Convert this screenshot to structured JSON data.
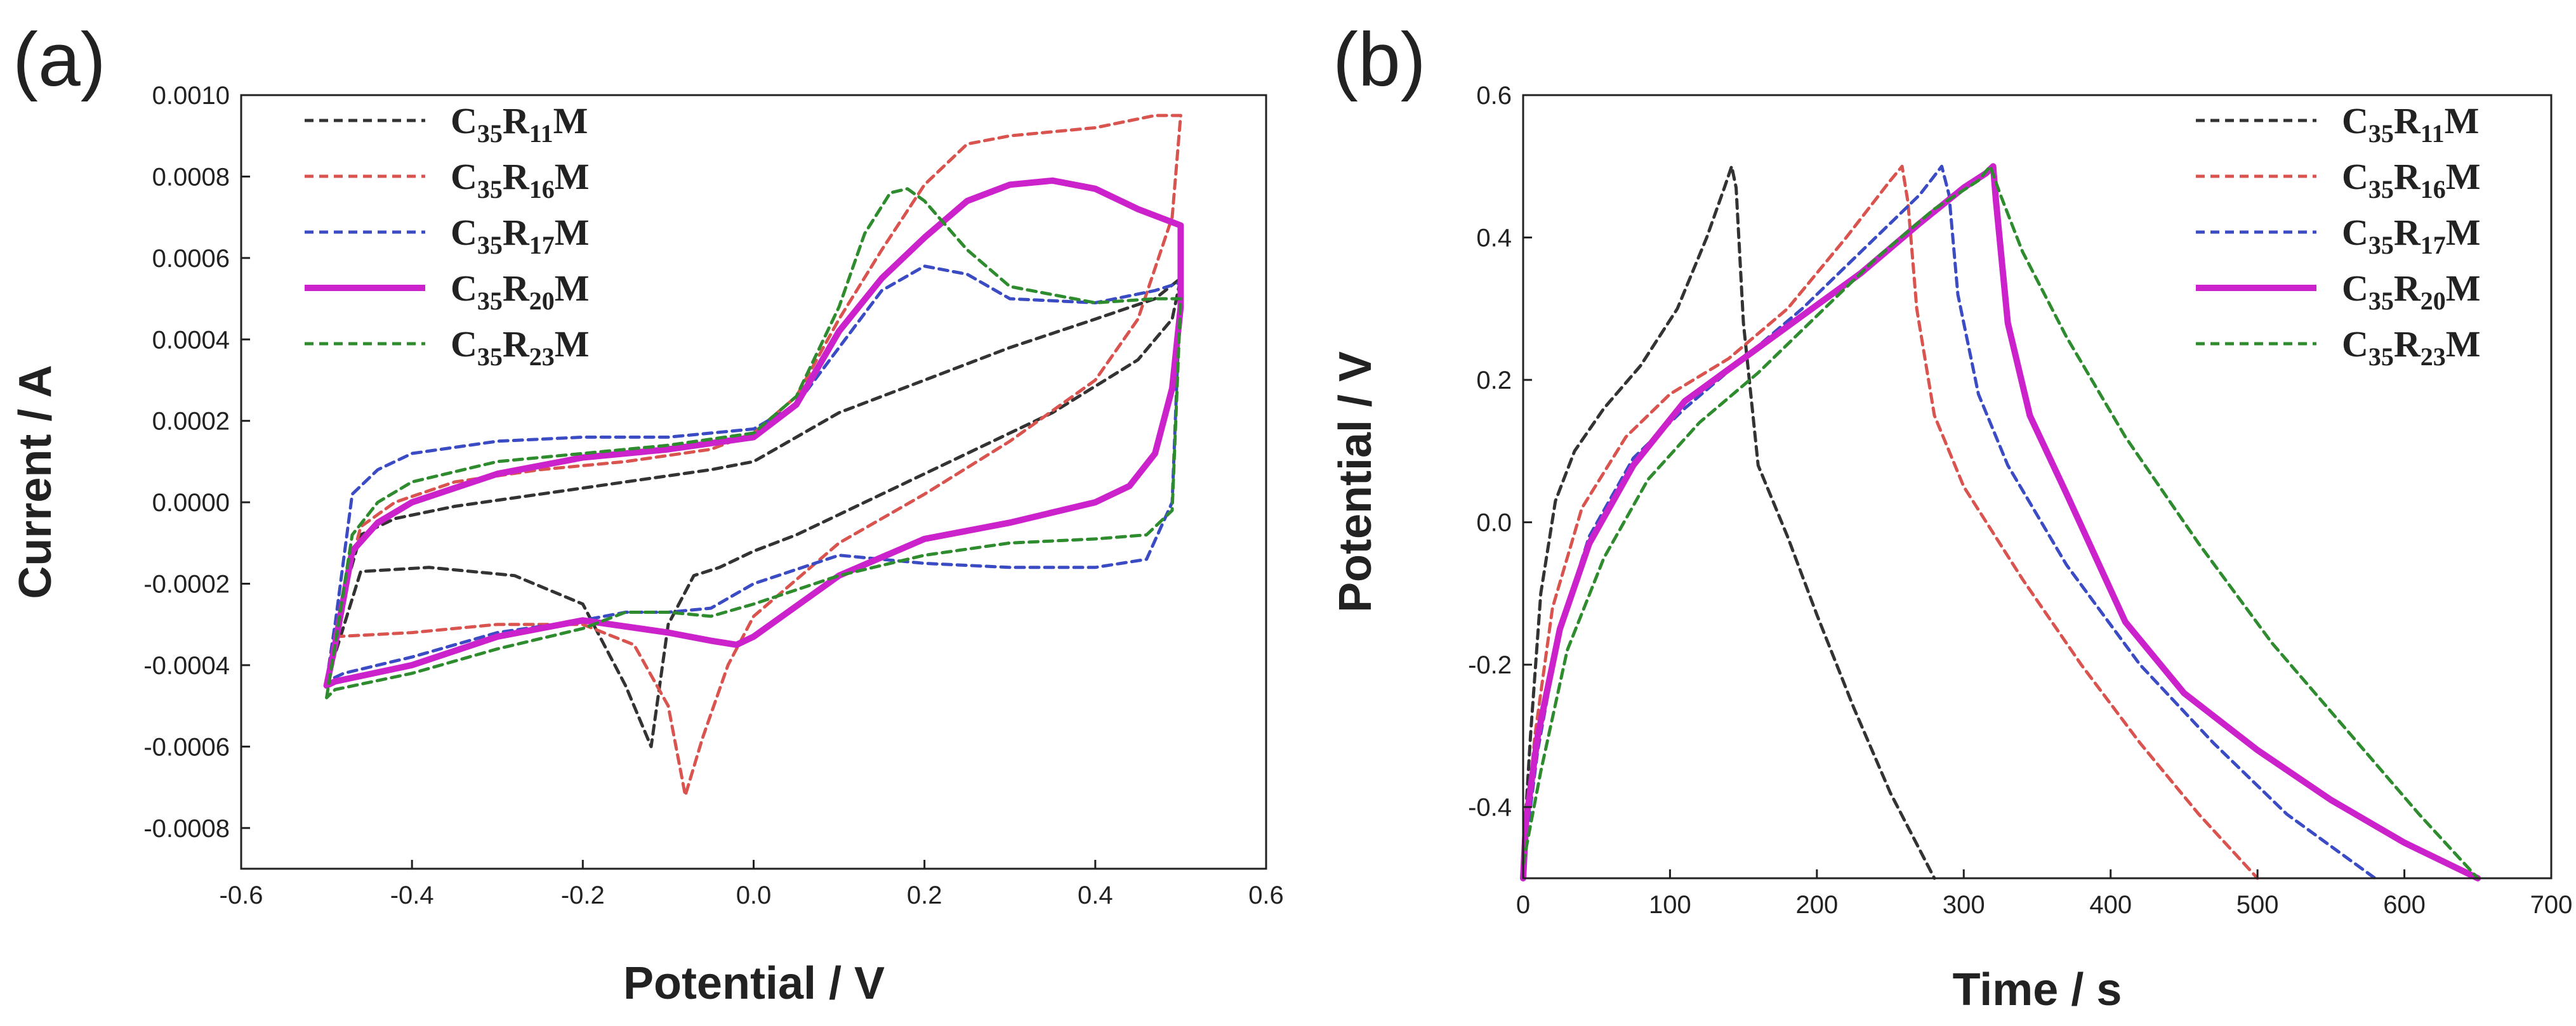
{
  "chart_data": [
    {
      "panel_label": "(a)",
      "type": "line",
      "xlabel": "Potential / V",
      "ylabel": "Current / A",
      "xlim": [
        -0.6,
        0.6
      ],
      "ylim": [
        -0.0009,
        0.001
      ],
      "xticks": [
        -0.6,
        -0.4,
        -0.2,
        0.0,
        0.2,
        0.4,
        0.6
      ],
      "xtick_labels": [
        "-0.6",
        "-0.4",
        "-0.2",
        "0.0",
        "0.2",
        "0.4",
        "0.6"
      ],
      "yticks": [
        -0.0008,
        -0.0006,
        -0.0004,
        -0.0002,
        0.0,
        0.0002,
        0.0004,
        0.0006,
        0.0008,
        0.001
      ],
      "ytick_labels": [
        "-0.0008",
        "-0.0006",
        "-0.0004",
        "-0.0002",
        "0.0000",
        "0.0002",
        "0.0004",
        "0.0006",
        "0.0008",
        "0.0010"
      ],
      "legend_position": "top-left",
      "series": [
        {
          "name": "C35R11M",
          "base": "C",
          "sub1": "35",
          "mid": "R",
          "sub2": "11",
          "tail": "M",
          "color": "#333333",
          "style": "dashed",
          "x": [
            -0.5,
            -0.49,
            -0.46,
            -0.42,
            -0.35,
            -0.25,
            -0.15,
            -0.05,
            0.0,
            0.05,
            0.1,
            0.2,
            0.3,
            0.4,
            0.47,
            0.5,
            0.49,
            0.45,
            0.35,
            0.25,
            0.15,
            0.05,
            0.0,
            -0.04,
            -0.07,
            -0.1,
            -0.12,
            -0.15,
            -0.2,
            -0.28,
            -0.38,
            -0.46,
            -0.5
          ],
          "y": [
            -0.00044,
            -0.0003,
            -8e-05,
            -4e-05,
            -1e-05,
            2e-05,
            5e-05,
            8e-05,
            0.0001,
            0.00016,
            0.00022,
            0.0003,
            0.00038,
            0.00045,
            0.0005,
            0.00055,
            0.00045,
            0.00035,
            0.00022,
            0.00012,
            2e-05,
            -8e-05,
            -0.00012,
            -0.00016,
            -0.00018,
            -0.0003,
            -0.0006,
            -0.00045,
            -0.00025,
            -0.00018,
            -0.00016,
            -0.00017,
            -0.00044
          ]
        },
        {
          "name": "C35R16M",
          "base": "C",
          "sub1": "35",
          "mid": "R",
          "sub2": "16",
          "tail": "M",
          "color": "#d9534f",
          "style": "dashed",
          "x": [
            -0.5,
            -0.49,
            -0.46,
            -0.42,
            -0.35,
            -0.25,
            -0.15,
            -0.05,
            0.0,
            0.05,
            0.1,
            0.15,
            0.2,
            0.25,
            0.3,
            0.4,
            0.47,
            0.5,
            0.49,
            0.45,
            0.4,
            0.3,
            0.2,
            0.1,
            0.0,
            -0.03,
            -0.06,
            -0.08,
            -0.1,
            -0.14,
            -0.2,
            -0.3,
            -0.4,
            -0.49,
            -0.5
          ],
          "y": [
            -0.00044,
            -0.0003,
            -6e-05,
            0.0,
            5e-05,
            8e-05,
            0.0001,
            0.00013,
            0.00017,
            0.00026,
            0.00045,
            0.00062,
            0.00078,
            0.00088,
            0.0009,
            0.00092,
            0.00095,
            0.00095,
            0.0007,
            0.00045,
            0.0003,
            0.00015,
            2e-05,
            -0.0001,
            -0.00028,
            -0.0004,
            -0.00058,
            -0.00072,
            -0.0005,
            -0.00035,
            -0.0003,
            -0.0003,
            -0.00032,
            -0.00033,
            -0.00044
          ]
        },
        {
          "name": "C35R17M",
          "base": "C",
          "sub1": "35",
          "mid": "R",
          "sub2": "17",
          "tail": "M",
          "color": "#3b4bc4",
          "style": "dashed",
          "x": [
            -0.5,
            -0.49,
            -0.47,
            -0.44,
            -0.4,
            -0.3,
            -0.2,
            -0.1,
            0.0,
            0.05,
            0.1,
            0.15,
            0.2,
            0.25,
            0.3,
            0.4,
            0.47,
            0.5,
            0.49,
            0.46,
            0.4,
            0.3,
            0.2,
            0.1,
            0.0,
            -0.05,
            -0.1,
            -0.15,
            -0.2,
            -0.3,
            -0.4,
            -0.48,
            -0.5
          ],
          "y": [
            -0.00044,
            -0.0003,
            2e-05,
            8e-05,
            0.00012,
            0.00015,
            0.00016,
            0.00016,
            0.00018,
            0.00024,
            0.00038,
            0.00052,
            0.00058,
            0.00056,
            0.0005,
            0.00049,
            0.00052,
            0.00054,
            0.0,
            -0.00014,
            -0.00016,
            -0.00016,
            -0.00015,
            -0.00013,
            -0.0002,
            -0.00026,
            -0.00027,
            -0.00027,
            -0.00029,
            -0.00032,
            -0.00038,
            -0.00042,
            -0.00044
          ]
        },
        {
          "name": "C35R20M",
          "base": "C",
          "sub1": "35",
          "mid": "R",
          "sub2": "20",
          "tail": "M",
          "color": "#cc22cc",
          "style": "solid",
          "x": [
            -0.5,
            -0.49,
            -0.47,
            -0.44,
            -0.4,
            -0.3,
            -0.2,
            -0.1,
            0.0,
            0.05,
            0.1,
            0.15,
            0.2,
            0.25,
            0.3,
            0.35,
            0.4,
            0.45,
            0.5,
            0.5,
            0.49,
            0.47,
            0.44,
            0.4,
            0.3,
            0.2,
            0.1,
            0.0,
            -0.02,
            -0.05,
            -0.1,
            -0.2,
            -0.3,
            -0.4,
            -0.49,
            -0.5
          ],
          "y": [
            -0.00045,
            -0.00035,
            -0.00012,
            -5e-05,
            0.0,
            7e-05,
            0.00011,
            0.00013,
            0.00016,
            0.00024,
            0.00042,
            0.00055,
            0.00065,
            0.00074,
            0.00078,
            0.00079,
            0.00077,
            0.00072,
            0.00068,
            0.00048,
            0.00028,
            0.00012,
            4e-05,
            0.0,
            -5e-05,
            -9e-05,
            -0.00018,
            -0.00033,
            -0.00035,
            -0.00034,
            -0.00032,
            -0.00029,
            -0.00033,
            -0.0004,
            -0.00044,
            -0.00045
          ]
        },
        {
          "name": "C35R23M",
          "base": "C",
          "sub1": "35",
          "mid": "R",
          "sub2": "23",
          "tail": "M",
          "color": "#2e8b2e",
          "style": "dashed",
          "x": [
            -0.5,
            -0.49,
            -0.47,
            -0.44,
            -0.4,
            -0.3,
            -0.2,
            -0.1,
            0.0,
            0.05,
            0.1,
            0.13,
            0.16,
            0.18,
            0.2,
            0.25,
            0.3,
            0.4,
            0.47,
            0.5,
            0.49,
            0.46,
            0.4,
            0.3,
            0.2,
            0.1,
            0.0,
            -0.05,
            -0.1,
            -0.15,
            -0.2,
            -0.3,
            -0.4,
            -0.49,
            -0.5
          ],
          "y": [
            -0.00048,
            -0.00035,
            -8e-05,
            0.0,
            5e-05,
            0.0001,
            0.00012,
            0.00014,
            0.00017,
            0.00026,
            0.00048,
            0.00066,
            0.00076,
            0.00077,
            0.00074,
            0.00062,
            0.00053,
            0.00049,
            0.0005,
            0.0005,
            -2e-05,
            -8e-05,
            -9e-05,
            -0.0001,
            -0.00013,
            -0.00018,
            -0.00025,
            -0.00028,
            -0.00027,
            -0.00027,
            -0.00031,
            -0.00036,
            -0.00042,
            -0.00046,
            -0.00048
          ]
        }
      ]
    },
    {
      "panel_label": "(b)",
      "type": "line",
      "xlabel": "Time / s",
      "ylabel": "Potential / V",
      "xlim": [
        0,
        700
      ],
      "ylim": [
        -0.5,
        0.6
      ],
      "xticks": [
        0,
        100,
        200,
        300,
        400,
        500,
        600,
        700
      ],
      "xtick_labels": [
        "0",
        "100",
        "200",
        "300",
        "400",
        "500",
        "600",
        "700"
      ],
      "yticks": [
        -0.4,
        -0.2,
        0.0,
        0.2,
        0.4,
        0.6
      ],
      "ytick_labels": [
        "-0.4",
        "-0.2",
        "0.0",
        "0.2",
        "0.4",
        "0.6"
      ],
      "legend_position": "top-right",
      "series": [
        {
          "name": "C35R11M",
          "base": "C",
          "sub1": "35",
          "mid": "R",
          "sub2": "11",
          "tail": "M",
          "color": "#333333",
          "style": "dashed",
          "x": [
            0,
            5,
            12,
            22,
            35,
            55,
            80,
            105,
            125,
            137,
            142,
            145,
            150,
            160,
            180,
            200,
            225,
            250,
            270,
            280
          ],
          "y": [
            -0.47,
            -0.3,
            -0.1,
            0.03,
            0.1,
            0.16,
            0.22,
            0.3,
            0.4,
            0.47,
            0.5,
            0.47,
            0.28,
            0.08,
            -0.02,
            -0.13,
            -0.26,
            -0.38,
            -0.46,
            -0.5
          ]
        },
        {
          "name": "C35R16M",
          "base": "C",
          "sub1": "35",
          "mid": "R",
          "sub2": "16",
          "tail": "M",
          "color": "#d9534f",
          "style": "dashed",
          "x": [
            0,
            8,
            20,
            40,
            70,
            100,
            140,
            180,
            220,
            250,
            258,
            262,
            268,
            280,
            300,
            340,
            380,
            420,
            460,
            500
          ],
          "y": [
            -0.48,
            -0.3,
            -0.12,
            0.02,
            0.12,
            0.18,
            0.23,
            0.3,
            0.4,
            0.48,
            0.5,
            0.45,
            0.3,
            0.15,
            0.05,
            -0.08,
            -0.2,
            -0.31,
            -0.41,
            -0.5
          ]
        },
        {
          "name": "C35R17M",
          "base": "C",
          "sub1": "35",
          "mid": "R",
          "sub2": "17",
          "tail": "M",
          "color": "#3b4bc4",
          "style": "dashed",
          "x": [
            0,
            10,
            25,
            45,
            75,
            110,
            150,
            190,
            230,
            270,
            285,
            290,
            296,
            310,
            330,
            370,
            420,
            470,
            520,
            580
          ],
          "y": [
            -0.48,
            -0.32,
            -0.15,
            -0.02,
            0.09,
            0.16,
            0.23,
            0.3,
            0.38,
            0.46,
            0.5,
            0.46,
            0.32,
            0.18,
            0.08,
            -0.06,
            -0.2,
            -0.31,
            -0.41,
            -0.5
          ]
        },
        {
          "name": "C35R20M",
          "base": "C",
          "sub1": "35",
          "mid": "R",
          "sub2": "20",
          "tail": "M",
          "color": "#cc22cc",
          "style": "solid",
          "x": [
            0,
            2,
            10,
            25,
            45,
            75,
            110,
            150,
            190,
            230,
            270,
            300,
            315,
            320,
            322,
            330,
            345,
            370,
            410,
            450,
            500,
            550,
            600,
            650
          ],
          "y": [
            -0.5,
            -0.42,
            -0.3,
            -0.15,
            -0.03,
            0.08,
            0.17,
            0.23,
            0.29,
            0.35,
            0.42,
            0.47,
            0.49,
            0.5,
            0.45,
            0.28,
            0.15,
            0.04,
            -0.14,
            -0.24,
            -0.32,
            -0.39,
            -0.45,
            -0.5
          ]
        },
        {
          "name": "C35R23M",
          "base": "C",
          "sub1": "35",
          "mid": "R",
          "sub2": "23",
          "tail": "M",
          "color": "#2e8b2e",
          "style": "dashed",
          "x": [
            0,
            12,
            30,
            55,
            85,
            120,
            160,
            200,
            240,
            280,
            310,
            318,
            325,
            340,
            370,
            410,
            460,
            510,
            560,
            610,
            650
          ],
          "y": [
            -0.48,
            -0.35,
            -0.18,
            -0.05,
            0.06,
            0.14,
            0.21,
            0.29,
            0.37,
            0.44,
            0.48,
            0.5,
            0.46,
            0.38,
            0.26,
            0.12,
            -0.03,
            -0.17,
            -0.29,
            -0.41,
            -0.5
          ]
        }
      ]
    }
  ]
}
